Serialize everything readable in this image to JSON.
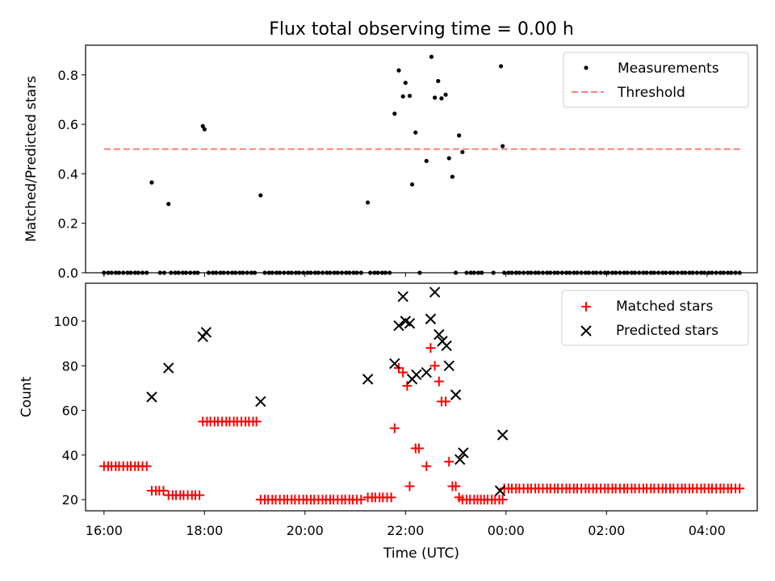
{
  "title": "Flux total observing time = 0.00 h",
  "chart_data": [
    {
      "type": "scatter",
      "ylabel": "Matched/Predicted stars",
      "ylim": [
        0,
        0.92
      ],
      "yticks": [
        "0.0",
        "0.2",
        "0.4",
        "0.6",
        "0.8"
      ],
      "xlim": [
        "15:38",
        "05:00"
      ],
      "legend": "top-right",
      "threshold": {
        "name": "Threshold",
        "value": 0.5,
        "x_from": "16:00",
        "x_to": "04:40",
        "color": "#ff7f7f"
      },
      "series": [
        {
          "name": "Measurements",
          "color": "#000000",
          "points": [
            [
              "16:57",
              0.365
            ],
            [
              "17:17",
              0.278
            ],
            [
              "17:58",
              0.593
            ],
            [
              "18:00",
              0.58
            ],
            [
              "19:07",
              0.313
            ],
            [
              "21:15",
              0.284
            ],
            [
              "21:47",
              0.643
            ],
            [
              "21:52",
              0.818
            ],
            [
              "21:57",
              0.713
            ],
            [
              "22:00",
              0.768
            ],
            [
              "22:05",
              0.715
            ],
            [
              "22:08",
              0.357
            ],
            [
              "22:12",
              0.567
            ],
            [
              "22:25",
              0.452
            ],
            [
              "22:31",
              0.873
            ],
            [
              "22:35",
              0.708
            ],
            [
              "22:39",
              0.775
            ],
            [
              "22:43",
              0.705
            ],
            [
              "22:48",
              0.72
            ],
            [
              "22:52",
              0.463
            ],
            [
              "22:56",
              0.388
            ],
            [
              "23:04",
              0.555
            ],
            [
              "23:08",
              0.488
            ],
            [
              "23:54",
              0.835
            ],
            [
              "23:56",
              0.512
            ]
          ],
          "zeros": [
            [
              "16:00",
              "16:54"
            ],
            [
              "17:07",
              "17:13"
            ],
            [
              "17:20",
              "17:55"
            ],
            [
              "18:05",
              "19:03"
            ],
            [
              "19:12",
              "21:11"
            ],
            [
              "21:18",
              "21:45"
            ],
            [
              "22:17",
              "22:18"
            ],
            [
              "23:00",
              "23:01"
            ],
            [
              "23:13",
              "23:32"
            ],
            [
              "23:45",
              "23:47"
            ],
            [
              "23:58",
              "04:40"
            ]
          ]
        }
      ]
    },
    {
      "type": "scatter",
      "xlabel": "Time (UTC)",
      "ylabel": "Count",
      "ylim": [
        15,
        117
      ],
      "yticks": [
        "20",
        "40",
        "60",
        "80",
        "100"
      ],
      "xticks": [
        "16:00",
        "18:00",
        "20:00",
        "22:00",
        "00:00",
        "02:00",
        "04:00"
      ],
      "xlim": [
        "15:38",
        "05:00"
      ],
      "legend": "top-right",
      "series": [
        {
          "name": "Matched stars",
          "marker": "plus",
          "color": "#ff0000",
          "runs": [
            [
              "16:00",
              "16:54",
              35
            ],
            [
              "16:57",
              "17:13",
              24
            ],
            [
              "17:17",
              "17:55",
              22
            ],
            [
              "17:58",
              "19:03",
              55
            ],
            [
              "19:07",
              "21:11",
              20
            ],
            [
              "21:15",
              "21:45",
              21
            ]
          ],
          "points": [
            [
              "21:47",
              52
            ],
            [
              "21:52",
              79
            ],
            [
              "21:57",
              77
            ],
            [
              "22:02",
              71
            ],
            [
              "22:05",
              26
            ],
            [
              "22:12",
              43
            ],
            [
              "22:16",
              43
            ],
            [
              "22:25",
              35
            ],
            [
              "22:30",
              88
            ],
            [
              "22:35",
              80
            ],
            [
              "22:40",
              73
            ],
            [
              "22:43",
              64
            ],
            [
              "22:48",
              64
            ],
            [
              "22:52",
              37
            ],
            [
              "22:56",
              26
            ],
            [
              "23:00",
              26
            ],
            [
              "23:04",
              21
            ],
            [
              "23:08",
              20
            ],
            [
              "23:13",
              20
            ],
            [
              "23:17",
              20
            ],
            [
              "23:22",
              20
            ],
            [
              "23:26",
              20
            ],
            [
              "23:30",
              20
            ],
            [
              "23:34",
              20
            ],
            [
              "23:38",
              20
            ],
            [
              "23:43",
              20
            ],
            [
              "23:47",
              20
            ],
            [
              "23:52",
              20
            ],
            [
              "23:56",
              20
            ]
          ],
          "runs_after": [
            [
              "23:58",
              "04:40",
              25
            ]
          ]
        },
        {
          "name": "Predicted stars",
          "marker": "x",
          "color": "#000000",
          "points": [
            [
              "16:57",
              66
            ],
            [
              "17:17",
              79
            ],
            [
              "17:58",
              93
            ],
            [
              "18:02",
              95
            ],
            [
              "19:07",
              64
            ],
            [
              "21:15",
              74
            ],
            [
              "21:47",
              81
            ],
            [
              "21:52",
              98
            ],
            [
              "21:57",
              111
            ],
            [
              "22:00",
              100
            ],
            [
              "22:05",
              99
            ],
            [
              "22:08",
              74
            ],
            [
              "22:13",
              76
            ],
            [
              "22:25",
              77
            ],
            [
              "22:30",
              101
            ],
            [
              "22:35",
              113
            ],
            [
              "22:40",
              94
            ],
            [
              "22:44",
              91
            ],
            [
              "22:49",
              89
            ],
            [
              "22:52",
              80
            ],
            [
              "23:00",
              67
            ],
            [
              "23:05",
              38
            ],
            [
              "23:09",
              41
            ],
            [
              "23:53",
              24
            ],
            [
              "23:56",
              49
            ]
          ]
        }
      ]
    }
  ]
}
